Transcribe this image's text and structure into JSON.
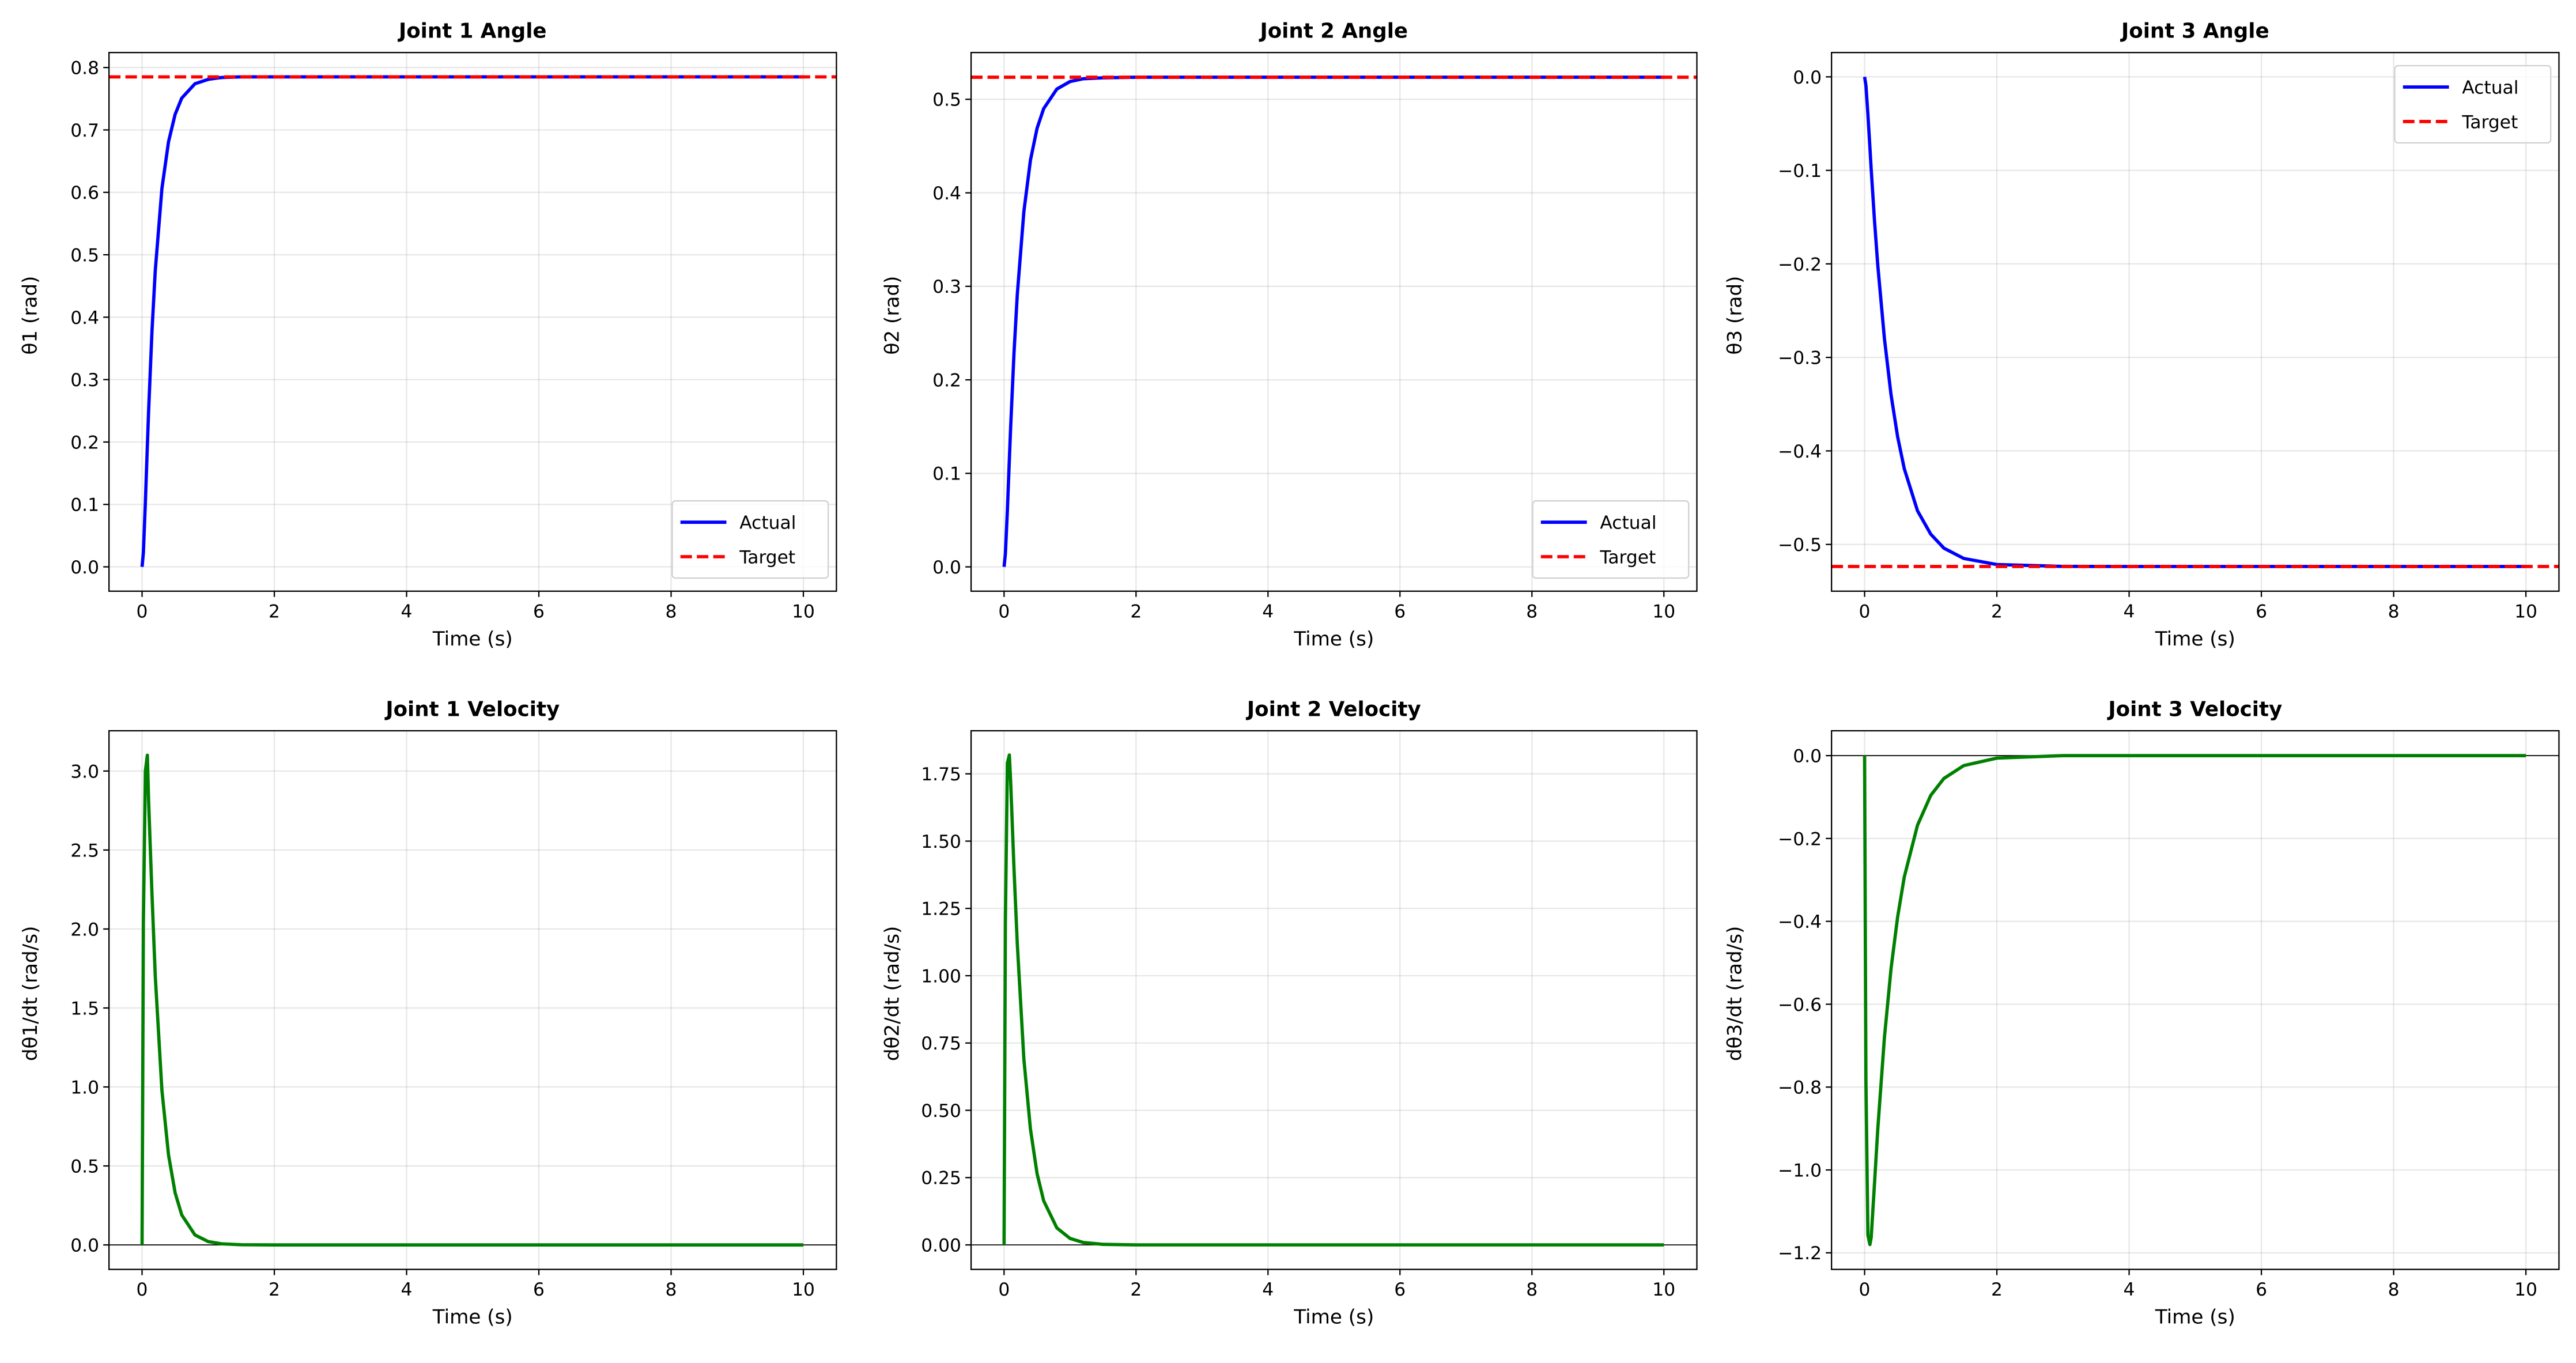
{
  "colors": {
    "actual": "#0000ff",
    "target": "#ff0000",
    "velocity": "#008000",
    "grid": "#b0b0b0"
  },
  "chart_data": [
    {
      "type": "line",
      "title": "Joint 1 Angle",
      "xlabel": "Time (s)",
      "ylabel": "θ1 (rad)",
      "xlim": [
        -0.5,
        10.5
      ],
      "ylim": [
        -0.039,
        0.824
      ],
      "xticks": [
        0,
        2,
        4,
        6,
        8,
        10
      ],
      "yticks": [
        0.0,
        0.1,
        0.2,
        0.3,
        0.4,
        0.5,
        0.6,
        0.7,
        0.8
      ],
      "ytick_decimals": 1,
      "grid": true,
      "legend": "lower-right",
      "x": [
        0,
        0.02,
        0.05,
        0.08,
        0.1,
        0.15,
        0.2,
        0.3,
        0.4,
        0.5,
        0.6,
        0.8,
        1.0,
        1.2,
        1.5,
        2,
        3,
        4,
        6,
        8,
        10
      ],
      "series": [
        {
          "name": "Actual",
          "style": "solid",
          "color": "#0000ff",
          "values": [
            0,
            0.023,
            0.103,
            0.194,
            0.252,
            0.378,
            0.475,
            0.606,
            0.681,
            0.725,
            0.751,
            0.774,
            0.781,
            0.784,
            0.785,
            0.785,
            0.785,
            0.785,
            0.785,
            0.785,
            0.785
          ]
        },
        {
          "name": "Target",
          "style": "dashed",
          "color": "#ff0000",
          "hline": 0.785
        }
      ]
    },
    {
      "type": "line",
      "title": "Joint 2 Angle",
      "xlabel": "Time (s)",
      "ylabel": "θ2 (rad)",
      "xlim": [
        -0.5,
        10.5
      ],
      "ylim": [
        -0.026,
        0.55
      ],
      "xticks": [
        0,
        2,
        4,
        6,
        8,
        10
      ],
      "yticks": [
        0.0,
        0.1,
        0.2,
        0.3,
        0.4,
        0.5
      ],
      "ytick_decimals": 1,
      "grid": true,
      "legend": "lower-right",
      "x": [
        0,
        0.02,
        0.05,
        0.08,
        0.1,
        0.15,
        0.2,
        0.3,
        0.4,
        0.5,
        0.6,
        0.8,
        1.0,
        1.2,
        1.5,
        2,
        3,
        4,
        6,
        8,
        10
      ],
      "series": [
        {
          "name": "Actual",
          "style": "solid",
          "color": "#0000ff",
          "values": [
            0,
            0.014,
            0.06,
            0.115,
            0.15,
            0.228,
            0.291,
            0.38,
            0.435,
            0.469,
            0.49,
            0.511,
            0.519,
            0.522,
            0.523,
            0.5236,
            0.5236,
            0.5236,
            0.5236,
            0.5236,
            0.5236
          ]
        },
        {
          "name": "Target",
          "style": "dashed",
          "color": "#ff0000",
          "hline": 0.5236
        }
      ]
    },
    {
      "type": "line",
      "title": "Joint 3 Angle",
      "xlabel": "Time (s)",
      "ylabel": "θ3 (rad)",
      "xlim": [
        -0.5,
        10.5
      ],
      "ylim": [
        -0.55,
        0.026
      ],
      "xticks": [
        0,
        2,
        4,
        6,
        8,
        10
      ],
      "yticks": [
        -0.5,
        -0.4,
        -0.3,
        -0.2,
        -0.1,
        0.0
      ],
      "ytick_decimals": 1,
      "grid": true,
      "legend": "upper-right",
      "x": [
        0,
        0.02,
        0.05,
        0.08,
        0.1,
        0.15,
        0.2,
        0.3,
        0.4,
        0.5,
        0.6,
        0.8,
        1.0,
        1.2,
        1.5,
        2,
        3,
        4,
        6,
        8,
        10
      ],
      "series": [
        {
          "name": "Actual",
          "style": "solid",
          "color": "#0000ff",
          "values": [
            0,
            -0.009,
            -0.04,
            -0.075,
            -0.099,
            -0.154,
            -0.202,
            -0.28,
            -0.34,
            -0.385,
            -0.419,
            -0.464,
            -0.489,
            -0.504,
            -0.515,
            -0.5215,
            -0.5235,
            -0.5236,
            -0.5236,
            -0.5236,
            -0.5236
          ]
        },
        {
          "name": "Target",
          "style": "dashed",
          "color": "#ff0000",
          "hline": -0.5236
        }
      ]
    },
    {
      "type": "line",
      "title": "Joint 1 Velocity",
      "xlabel": "Time (s)",
      "ylabel": "dθ1/dt (rad/s)",
      "xlim": [
        -0.5,
        10.5
      ],
      "ylim": [
        -0.155,
        3.255
      ],
      "xticks": [
        0,
        2,
        4,
        6,
        8,
        10
      ],
      "yticks": [
        0.0,
        0.5,
        1.0,
        1.5,
        2.0,
        2.5,
        3.0
      ],
      "ytick_decimals": 1,
      "grid": true,
      "zero_line": true,
      "x": [
        0,
        0.02,
        0.05,
        0.08,
        0.1,
        0.15,
        0.2,
        0.3,
        0.4,
        0.5,
        0.6,
        0.8,
        1.0,
        1.2,
        1.5,
        2,
        3,
        4,
        6,
        8,
        10
      ],
      "series": [
        {
          "style": "solid",
          "color": "#008000",
          "values": [
            0,
            2.04,
            3.0,
            3.1,
            2.8,
            2.22,
            1.7,
            0.98,
            0.57,
            0.33,
            0.19,
            0.063,
            0.021,
            0.007,
            0.001,
            0,
            0,
            0,
            0,
            0,
            0
          ]
        }
      ]
    },
    {
      "type": "line",
      "title": "Joint 2 Velocity",
      "xlabel": "Time (s)",
      "ylabel": "dθ2/dt (rad/s)",
      "xlim": [
        -0.5,
        10.5
      ],
      "ylim": [
        -0.091,
        1.91
      ],
      "xticks": [
        0,
        2,
        4,
        6,
        8,
        10
      ],
      "yticks": [
        0.0,
        0.25,
        0.5,
        0.75,
        1.0,
        1.25,
        1.5,
        1.75
      ],
      "ytick_decimals": 2,
      "grid": true,
      "zero_line": true,
      "x": [
        0,
        0.02,
        0.05,
        0.08,
        0.1,
        0.15,
        0.2,
        0.3,
        0.4,
        0.5,
        0.6,
        0.8,
        1.0,
        1.2,
        1.5,
        2,
        3,
        4,
        6,
        8,
        10
      ],
      "series": [
        {
          "style": "solid",
          "color": "#008000",
          "values": [
            0,
            1.2,
            1.79,
            1.82,
            1.72,
            1.4,
            1.12,
            0.69,
            0.43,
            0.265,
            0.164,
            0.063,
            0.024,
            0.009,
            0.002,
            0,
            0,
            0,
            0,
            0,
            0
          ]
        }
      ]
    },
    {
      "type": "line",
      "title": "Joint 3 Velocity",
      "xlabel": "Time (s)",
      "ylabel": "dθ3/dt (rad/s)",
      "xlim": [
        -0.5,
        10.5
      ],
      "ylim": [
        -1.24,
        0.06
      ],
      "xticks": [
        0,
        2,
        4,
        6,
        8,
        10
      ],
      "yticks": [
        -1.2,
        -1.0,
        -0.8,
        -0.6,
        -0.4,
        -0.2,
        0.0
      ],
      "ytick_decimals": 1,
      "grid": true,
      "zero_line": true,
      "x": [
        0,
        0.02,
        0.05,
        0.08,
        0.1,
        0.15,
        0.2,
        0.3,
        0.4,
        0.5,
        0.6,
        0.8,
        1.0,
        1.2,
        1.5,
        2,
        3,
        4,
        6,
        8,
        10
      ],
      "series": [
        {
          "style": "solid",
          "color": "#008000",
          "values": [
            0,
            -0.78,
            -1.157,
            -1.18,
            -1.163,
            -1.032,
            -0.9,
            -0.68,
            -0.514,
            -0.389,
            -0.293,
            -0.168,
            -0.096,
            -0.055,
            -0.024,
            -0.006,
            0,
            0,
            0,
            0,
            0
          ]
        }
      ]
    }
  ]
}
